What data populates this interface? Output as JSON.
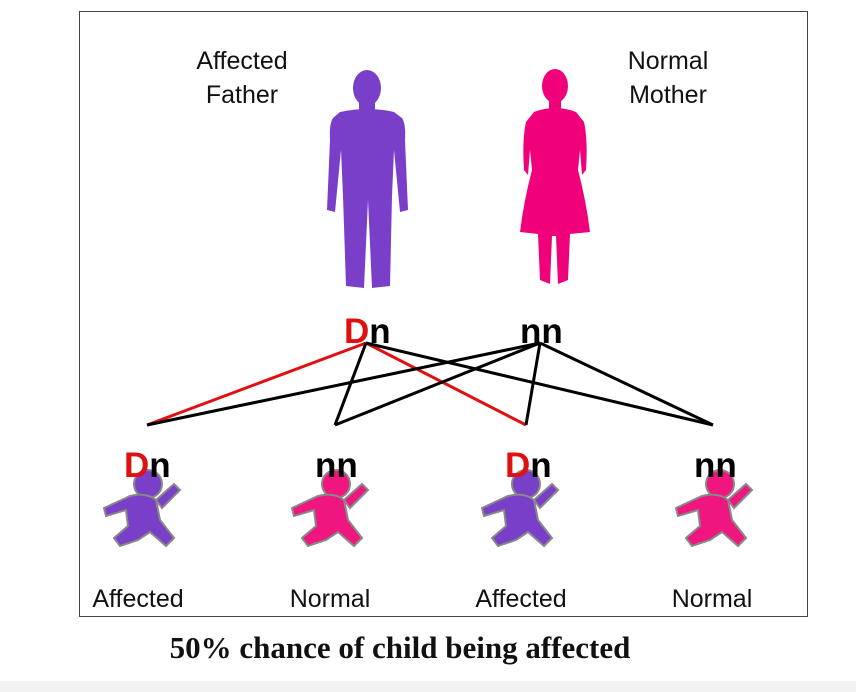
{
  "parents": {
    "father": {
      "label_line1": "Affected",
      "label_line2": "Father",
      "genotype_dom": "D",
      "genotype_rest": "n",
      "color": "#7a3fc8"
    },
    "mother": {
      "label_line1": "Normal",
      "label_line2": "Mother",
      "genotype_dom": "",
      "genotype_rest": "nn",
      "color": "#f0007a"
    }
  },
  "children": [
    {
      "genotype_dom": "D",
      "genotype_rest": "n",
      "status": "Affected",
      "color": "#7a3fc8"
    },
    {
      "genotype_dom": "",
      "genotype_rest": "nn",
      "status": "Normal",
      "color": "#f0167f"
    },
    {
      "genotype_dom": "D",
      "genotype_rest": "n",
      "status": "Affected",
      "color": "#7a3fc8"
    },
    {
      "genotype_dom": "",
      "genotype_rest": "nn",
      "status": "Normal",
      "color": "#f0167f"
    }
  ],
  "colors": {
    "dominant_allele": "#e01010",
    "cross_line_black": "#000000",
    "cross_line_red": "#e01010"
  },
  "caption": "50% chance of child being affected"
}
